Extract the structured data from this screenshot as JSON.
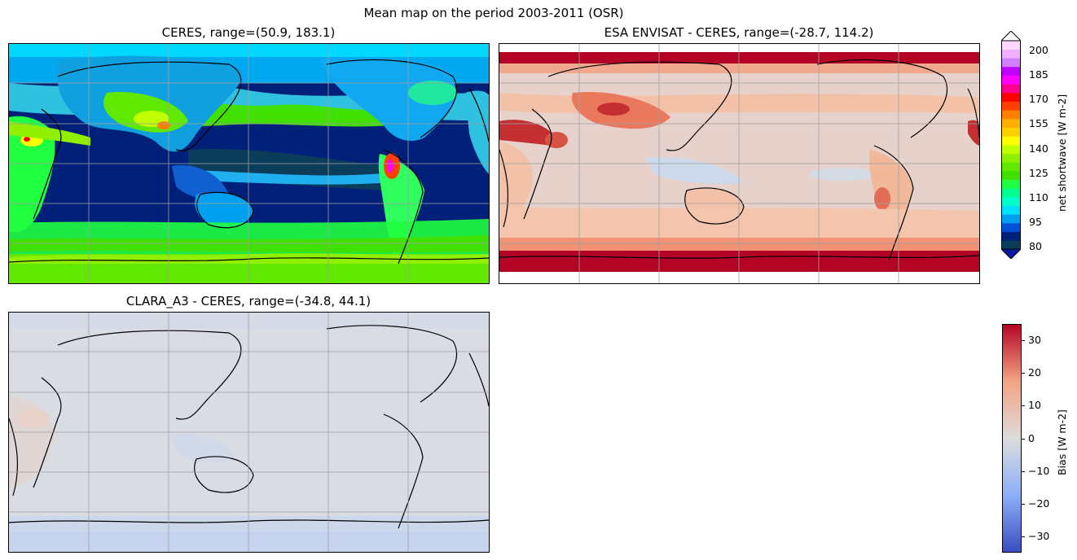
{
  "figure": {
    "suptitle": "Mean map on the period 2003-2011 (OSR)"
  },
  "panels": [
    {
      "title": "CERES, range=(50.9, 183.1)"
    },
    {
      "title": "ESA ENVISAT - CERES, range=(-28.7, 114.2)"
    },
    {
      "title": "CLARA_A3 - CERES, range=(-34.8, 44.1)"
    }
  ],
  "colorbars": {
    "main": {
      "label": "net shortwave [W m-2]",
      "ticks": [
        "200",
        "185",
        "170",
        "155",
        "140",
        "125",
        "110",
        "95",
        "80"
      ],
      "extend": "both",
      "colors": [
        "#0b3d5a",
        "#00207a",
        "#0050d8",
        "#00a0f0",
        "#00e0ff",
        "#00ffc8",
        "#00ff90",
        "#20ff40",
        "#40e000",
        "#60e800",
        "#90f000",
        "#c0ff00",
        "#ffff00",
        "#ffd000",
        "#ffb000",
        "#ff8000",
        "#ff4000",
        "#ff0000",
        "#ff0090",
        "#ff00ff",
        "#c000ff",
        "#d080ff",
        "#f0b0ff",
        "#ffd8ff"
      ]
    },
    "bias": {
      "label": "Bias [W m-2]",
      "ticks": [
        "30",
        "20",
        "10",
        "0",
        "−10",
        "−20",
        "−30"
      ],
      "range": [
        -35,
        35
      ]
    }
  },
  "chart_data": [
    {
      "type": "heatmap",
      "title": "CERES, range=(50.9, 183.1)",
      "value_range": [
        50.9,
        183.1
      ],
      "colorbar_ticks": [
        80,
        95,
        110,
        125,
        140,
        155,
        170,
        185,
        200
      ],
      "colorbar_label": "net shortwave [W m-2]",
      "projection": "PlateCarree (central longitude 180)",
      "grid": true
    },
    {
      "type": "heatmap",
      "title": "ESA ENVISAT - CERES, range=(-28.7, 114.2)",
      "value_range": [
        -28.7,
        114.2
      ],
      "colorbar_ticks": [
        -30,
        -20,
        -10,
        0,
        10,
        20,
        30
      ],
      "colorbar_label": "Bias [W m-2]",
      "grid": true
    },
    {
      "type": "heatmap",
      "title": "CLARA_A3 - CERES, range=(-34.8, 44.1)",
      "value_range": [
        -34.8,
        44.1
      ],
      "colorbar_ticks": [
        -30,
        -20,
        -10,
        0,
        10,
        20,
        30
      ],
      "colorbar_label": "Bias [W m-2]",
      "grid": true
    }
  ]
}
